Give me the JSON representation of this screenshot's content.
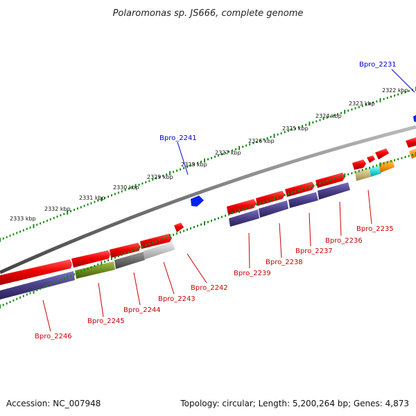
{
  "title": "Polaromonas sp. JS666, complete genome",
  "footer": {
    "accession": "Accession: NC_007948",
    "topology": "Topology: circular; Length: 5,200,264 bp; Genes: 4,873"
  },
  "scale_labels": [
    "2333 kbp",
    "2332 kbp",
    "2331 kbp",
    "2330 kbp",
    "2329 kbp",
    "2328 kbp",
    "2327 kbp",
    "2326 kbp",
    "2325 kbp",
    "2324 kbp",
    "2323 kbp",
    "2322 kbp"
  ],
  "gene_labels_red": [
    "Bpro_2246",
    "Bpro_2245",
    "Bpro_2244",
    "Bpro_2243",
    "Bpro_2242",
    "Bpro_2239",
    "Bpro_2238",
    "Bpro_2237",
    "Bpro_2236",
    "Bpro_2235"
  ],
  "gene_labels_blue": [
    "Bpro_2241",
    "Bpro_2231"
  ],
  "colors": {
    "forward_gene": "#ee0000",
    "cds_bar": "#4a3f88",
    "backbone": "#777777",
    "tick": "#1a8a1a",
    "blue_gene": "#0022ee",
    "olive": "#6f8e22",
    "dark_gray": "#6a6a6a",
    "light_gray": "#bbbbbb",
    "tan": "#c9b87a",
    "cyan": "#22dde8",
    "orange": "#ff9a10"
  }
}
